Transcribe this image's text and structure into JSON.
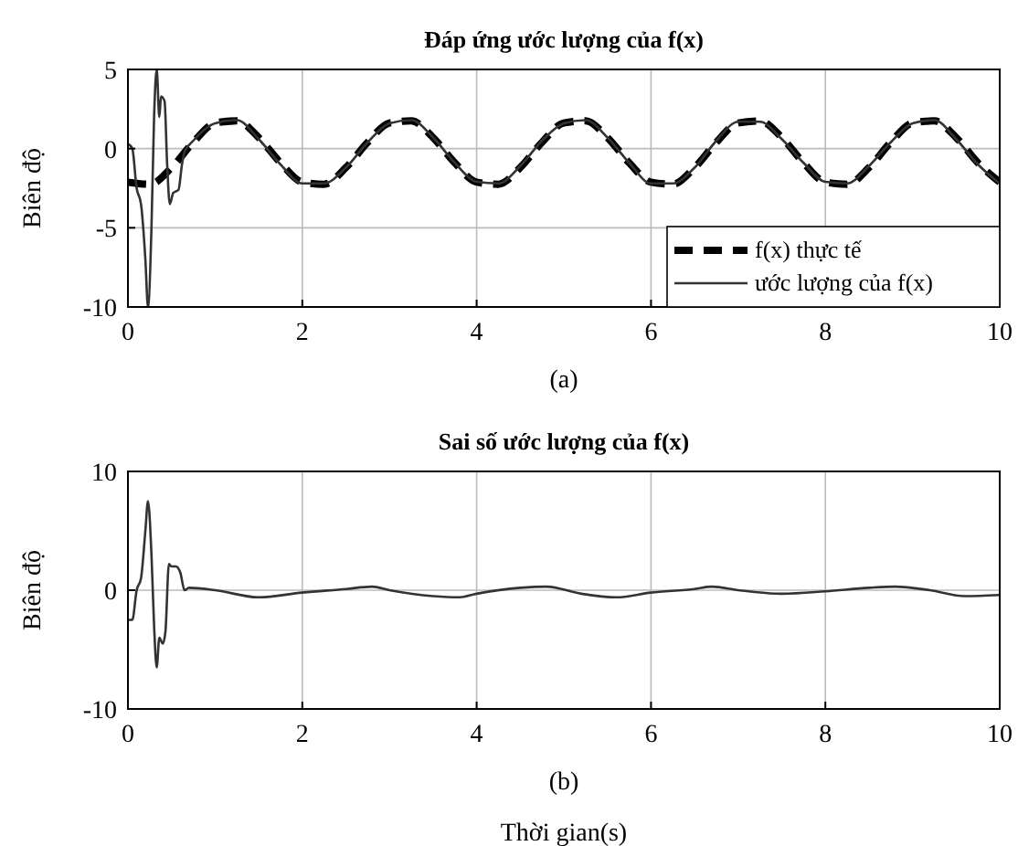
{
  "chart_data": [
    {
      "type": "line",
      "title": "Đáp ứng ước lượng của f(x)",
      "ylabel": "Biên độ",
      "annotations": [
        "(a)"
      ],
      "xlim": [
        0,
        10
      ],
      "ylim": [
        -10,
        5
      ],
      "xticks": [
        0,
        2,
        4,
        6,
        8,
        10
      ],
      "yticks": [
        -10,
        -5,
        0,
        5
      ],
      "grid": true,
      "legend": "bottom right",
      "series": [
        {
          "name": "f(x) thực tế",
          "color": "#000000",
          "line_style": "dashed",
          "x": [
            0,
            0.25,
            0.5,
            0.75,
            1,
            1.25,
            1.5,
            1.75,
            2,
            2.25,
            2.5,
            2.75,
            3,
            3.25,
            3.5,
            3.75,
            4,
            4.25,
            4.5,
            4.75,
            5,
            5.25,
            5.5,
            5.75,
            6,
            6.25,
            6.5,
            6.75,
            7,
            7.25,
            7.5,
            7.75,
            8,
            8.25,
            8.5,
            8.75,
            9,
            9.25,
            9.5,
            9.75,
            10
          ],
          "values": [
            -2.12,
            -2.25,
            -1.2,
            0.4,
            1.62,
            1.75,
            0.7,
            -0.9,
            -2.12,
            -2.25,
            -1.2,
            0.4,
            1.62,
            1.75,
            0.7,
            -0.9,
            -2.12,
            -2.25,
            -1.2,
            0.4,
            1.62,
            1.75,
            0.7,
            -0.9,
            -2.12,
            -2.25,
            -1.2,
            0.4,
            1.62,
            1.75,
            0.7,
            -0.9,
            -2.12,
            -2.25,
            -1.2,
            0.4,
            1.62,
            1.75,
            0.7,
            -0.9,
            -2.12
          ]
        },
        {
          "name": "ước lượng của f(x)",
          "color": "#333333",
          "line_style": "solid",
          "x": [
            0,
            0.05,
            0.1,
            0.15,
            0.2,
            0.23,
            0.27,
            0.3,
            0.33,
            0.36,
            0.38,
            0.42,
            0.45,
            0.48,
            0.52,
            0.58,
            0.62,
            0.65,
            0.75,
            1,
            1.25,
            1.5,
            1.75,
            2,
            2.25,
            2.5,
            2.75,
            3,
            3.25,
            3.5,
            3.75,
            4,
            4.25,
            4.5,
            4.75,
            5,
            5.25,
            5.5,
            5.75,
            6,
            6.25,
            6.5,
            6.75,
            7,
            7.25,
            7.5,
            7.75,
            8,
            8.25,
            8.5,
            8.75,
            9,
            9.25,
            9.5,
            9.75,
            10
          ],
          "values": [
            0.3,
            0,
            -2.5,
            -3.5,
            -7,
            -10,
            -5,
            2,
            5,
            2,
            3.3,
            3,
            -1,
            -3.5,
            -2.8,
            -2.6,
            -1,
            -0.2,
            0.5,
            1.6,
            1.8,
            0.6,
            -1,
            -2.2,
            -2.2,
            -1.2,
            0.4,
            1.6,
            1.8,
            0.7,
            -0.9,
            -2.1,
            -2.2,
            -1.1,
            0.5,
            1.6,
            1.8,
            0.7,
            -0.9,
            -2.2,
            -2.2,
            -1.2,
            0.5,
            1.7,
            1.7,
            0.6,
            -0.9,
            -2.1,
            -2.2,
            -1.1,
            0.4,
            1.6,
            1.8,
            0.6,
            -1,
            -2.2
          ]
        }
      ]
    },
    {
      "type": "line",
      "title": "Sai số ước lượng của f(x)",
      "ylabel": "Biên độ",
      "xlabel": "Thời gian(s)",
      "annotations": [
        "(b)"
      ],
      "xlim": [
        0,
        10
      ],
      "ylim": [
        -10,
        10
      ],
      "xticks": [
        0,
        2,
        4,
        6,
        8,
        10
      ],
      "yticks": [
        -10,
        0,
        10
      ],
      "grid": true,
      "series": [
        {
          "color": "#333333",
          "line_style": "solid",
          "x": [
            0,
            0.05,
            0.1,
            0.15,
            0.2,
            0.23,
            0.27,
            0.3,
            0.33,
            0.36,
            0.4,
            0.43,
            0.47,
            0.5,
            0.55,
            0.6,
            0.65,
            0.7,
            1,
            1.5,
            2,
            2.5,
            2.8,
            3,
            3.5,
            3.8,
            4,
            4.5,
            4.8,
            5.2,
            5.6,
            6,
            6.5,
            6.7,
            7,
            7.5,
            8,
            8.5,
            8.8,
            9.2,
            9.6,
            10
          ],
          "values": [
            -2.5,
            -2.5,
            0,
            1,
            5,
            7.5,
            3,
            -3,
            -6.5,
            -4,
            -4.5,
            -3.5,
            2.2,
            2,
            2,
            1.5,
            0,
            0.2,
            0,
            -0.6,
            -0.2,
            0.1,
            0.3,
            0,
            -0.5,
            -0.6,
            -0.3,
            0.2,
            0.3,
            -0.3,
            -0.6,
            -0.2,
            0.1,
            0.3,
            0,
            -0.3,
            -0.1,
            0.2,
            0.3,
            0,
            -0.5,
            -0.4
          ]
        }
      ]
    }
  ]
}
